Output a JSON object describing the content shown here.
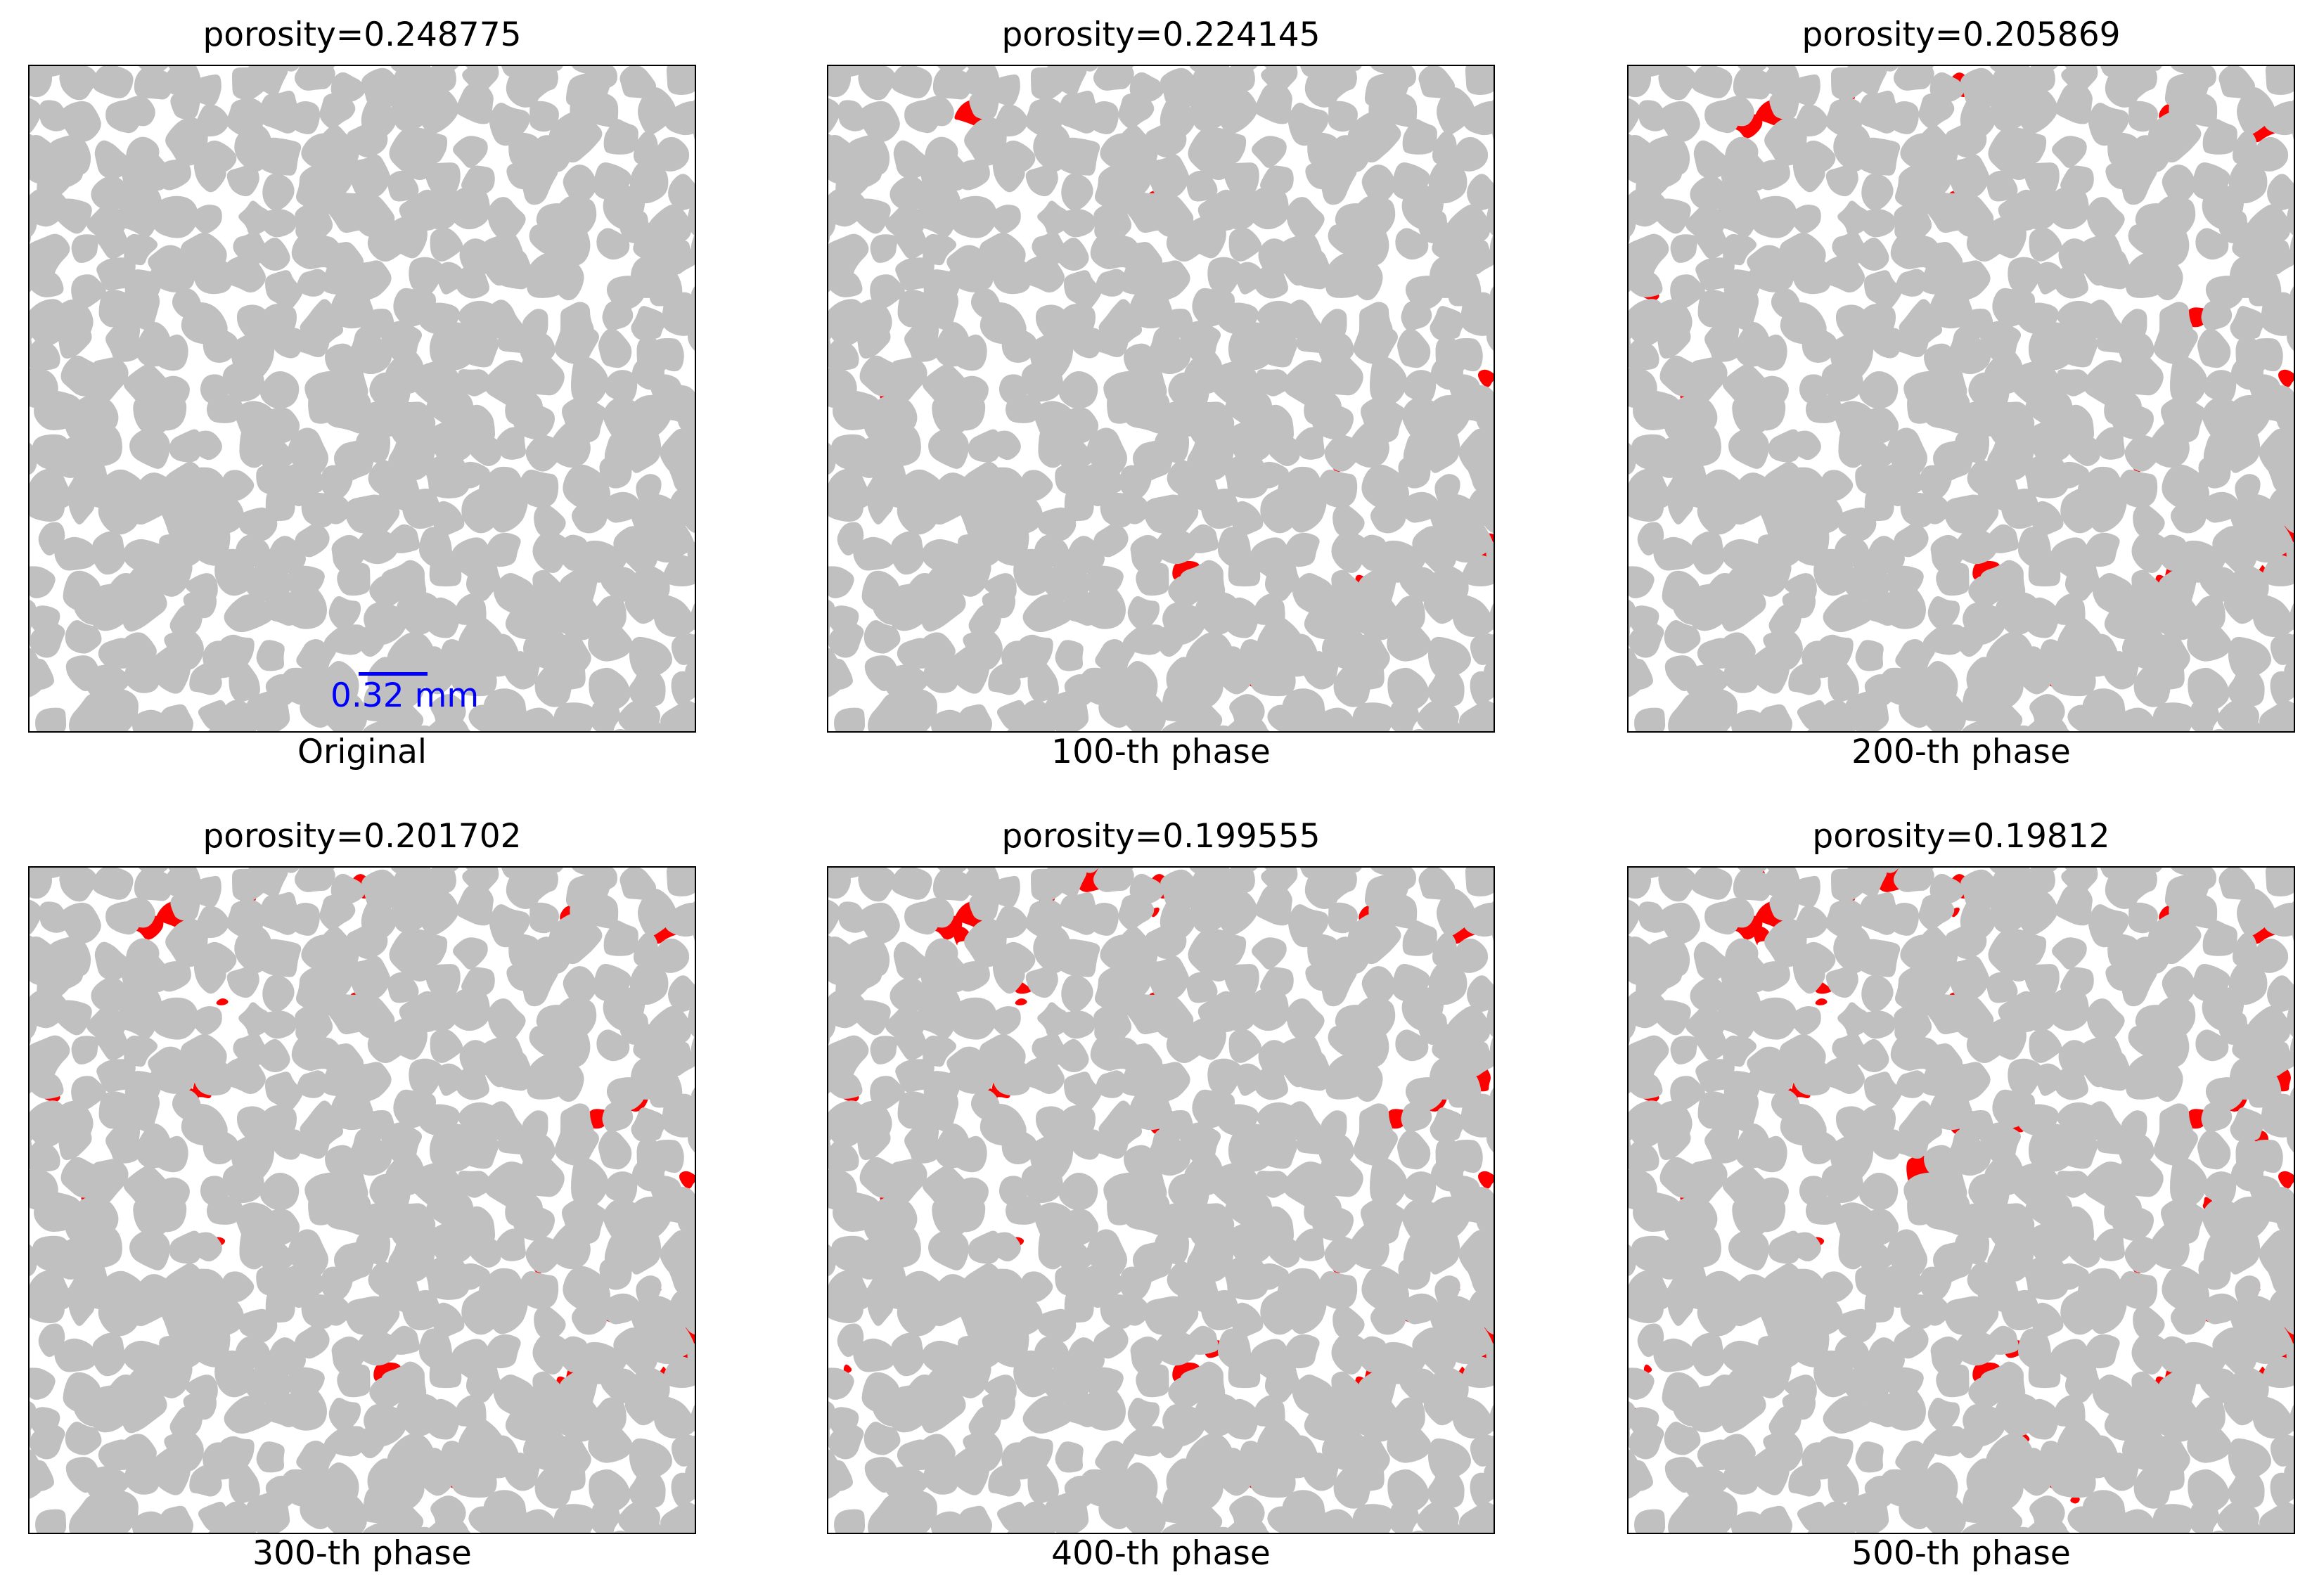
{
  "panels": [
    {
      "title": "porosity=0.248775",
      "caption": "Original",
      "scale_bar": "0.32 mm",
      "red_level": 0
    },
    {
      "title": "porosity=0.224145",
      "caption": "100-th phase",
      "red_level": 1
    },
    {
      "title": "porosity=0.205869",
      "caption": "200-th phase",
      "red_level": 2
    },
    {
      "title": "porosity=0.201702",
      "caption": "300-th phase",
      "red_level": 3
    },
    {
      "title": "porosity=0.199555",
      "caption": "400-th phase",
      "red_level": 4
    },
    {
      "title": "porosity=0.19812",
      "caption": "500-th phase",
      "red_level": 5
    }
  ],
  "colors": {
    "grain": "#c0c0c0",
    "pore": "#ffffff",
    "deposit": "#ff0000",
    "scale_bar": "#0000ff",
    "frame": "#000000"
  }
}
